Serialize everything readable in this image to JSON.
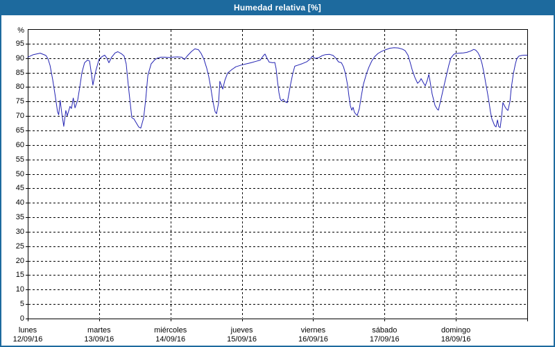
{
  "window": {
    "title": "Humedad relativa [%]"
  },
  "colors": {
    "titlebar_bg": "#1d6a9e",
    "frame_border": "#1d6a9e",
    "title_text": "#ffffff",
    "plot_border": "#000000",
    "grid": "#000000",
    "line": "#2222b2",
    "background": "#ffffff",
    "label_text": "#000000"
  },
  "chart_data": {
    "type": "line",
    "title": "Humedad relativa [%]",
    "ylabel": "%",
    "xlabel": "",
    "ylim": [
      0,
      100
    ],
    "xlim": [
      0,
      168
    ],
    "x_unit": "hours",
    "ytick_step": 5,
    "ytick_labels": [
      "0",
      "5",
      "10",
      "15",
      "20",
      "25",
      "30",
      "35",
      "40",
      "45",
      "50",
      "55",
      "60",
      "65",
      "70",
      "75",
      "80",
      "85",
      "90",
      "95"
    ],
    "y_axis_top_label": "%",
    "grid": "dashed",
    "legend": "none",
    "x_days": [
      {
        "name": "lunes",
        "date": "12/09/16"
      },
      {
        "name": "martes",
        "date": "13/09/16"
      },
      {
        "name": "miércoles",
        "date": "14/09/16"
      },
      {
        "name": "jueves",
        "date": "15/09/16"
      },
      {
        "name": "viernes",
        "date": "16/09/16"
      },
      {
        "name": "sábado",
        "date": "17/09/16"
      },
      {
        "name": "domingo",
        "date": "18/09/16"
      }
    ],
    "series": [
      {
        "name": "Humedad relativa",
        "color": "#2222b2",
        "points": [
          [
            0.0,
            90.3
          ],
          [
            1.9,
            91.2
          ],
          [
            4.2,
            91.7
          ],
          [
            6.1,
            90.9
          ],
          [
            6.8,
            89.8
          ],
          [
            7.5,
            87.5
          ],
          [
            8.4,
            82.5
          ],
          [
            9.3,
            76.5
          ],
          [
            10.0,
            71.5
          ],
          [
            10.4,
            70.4
          ],
          [
            10.9,
            75.4
          ],
          [
            11.4,
            71.2
          ],
          [
            12.1,
            66.4
          ],
          [
            12.8,
            71.9
          ],
          [
            13.3,
            70.1
          ],
          [
            14.2,
            73.3
          ],
          [
            14.7,
            72.6
          ],
          [
            15.3,
            76.2
          ],
          [
            15.9,
            72.8
          ],
          [
            16.8,
            75.5
          ],
          [
            17.5,
            80.0
          ],
          [
            18.2,
            84.9
          ],
          [
            19.1,
            88.4
          ],
          [
            20.1,
            89.3
          ],
          [
            20.8,
            89.0
          ],
          [
            21.5,
            84.0
          ],
          [
            21.9,
            80.7
          ],
          [
            22.9,
            85.6
          ],
          [
            24.0,
            89.7
          ],
          [
            25.0,
            90.5
          ],
          [
            25.9,
            91.0
          ],
          [
            26.6,
            90.0
          ],
          [
            27.3,
            88.4
          ],
          [
            28.2,
            90.3
          ],
          [
            29.4,
            91.8
          ],
          [
            30.3,
            92.2
          ],
          [
            31.5,
            91.5
          ],
          [
            32.4,
            90.7
          ],
          [
            33.1,
            88.0
          ],
          [
            33.8,
            80.7
          ],
          [
            34.3,
            76.0
          ],
          [
            35.0,
            69.4
          ],
          [
            35.7,
            69.0
          ],
          [
            36.6,
            67.4
          ],
          [
            37.3,
            66.2
          ],
          [
            38.0,
            65.8
          ],
          [
            39.0,
            69.4
          ],
          [
            39.7,
            75.9
          ],
          [
            40.4,
            84.0
          ],
          [
            41.5,
            88.0
          ],
          [
            42.7,
            89.4
          ],
          [
            43.6,
            90.0
          ],
          [
            44.8,
            90.3
          ],
          [
            46.2,
            90.3
          ],
          [
            47.4,
            90.2
          ],
          [
            48.5,
            90.3
          ],
          [
            50.4,
            90.4
          ],
          [
            51.8,
            90.3
          ],
          [
            52.7,
            89.5
          ],
          [
            53.7,
            90.8
          ],
          [
            55.1,
            92.3
          ],
          [
            56.2,
            93.2
          ],
          [
            57.4,
            92.9
          ],
          [
            58.3,
            91.6
          ],
          [
            59.3,
            89.5
          ],
          [
            60.2,
            86.5
          ],
          [
            60.9,
            83.5
          ],
          [
            61.6,
            79.5
          ],
          [
            62.3,
            74.9
          ],
          [
            63.0,
            71.5
          ],
          [
            63.5,
            70.8
          ],
          [
            64.2,
            74.5
          ],
          [
            64.6,
            82.0
          ],
          [
            65.6,
            79.3
          ],
          [
            66.3,
            82.3
          ],
          [
            67.2,
            84.8
          ],
          [
            68.6,
            86.0
          ],
          [
            70.0,
            87.0
          ],
          [
            71.9,
            87.6
          ],
          [
            73.5,
            88.0
          ],
          [
            75.1,
            88.4
          ],
          [
            76.8,
            88.9
          ],
          [
            78.2,
            89.3
          ],
          [
            79.3,
            90.9
          ],
          [
            79.8,
            91.4
          ],
          [
            80.5,
            89.9
          ],
          [
            81.2,
            88.6
          ],
          [
            82.4,
            88.4
          ],
          [
            83.1,
            88.5
          ],
          [
            83.5,
            86.5
          ],
          [
            84.0,
            82.0
          ],
          [
            84.5,
            78.0
          ],
          [
            84.9,
            75.9
          ],
          [
            85.4,
            75.2
          ],
          [
            85.9,
            75.8
          ],
          [
            86.6,
            74.9
          ],
          [
            87.3,
            74.6
          ],
          [
            87.7,
            77.0
          ],
          [
            88.4,
            81.0
          ],
          [
            89.1,
            84.5
          ],
          [
            89.8,
            87.2
          ],
          [
            91.0,
            87.6
          ],
          [
            92.4,
            88.1
          ],
          [
            93.8,
            88.7
          ],
          [
            95.0,
            89.7
          ],
          [
            95.7,
            90.6
          ],
          [
            96.6,
            89.9
          ],
          [
            97.8,
            90.1
          ],
          [
            98.9,
            90.8
          ],
          [
            100.1,
            91.2
          ],
          [
            101.5,
            91.3
          ],
          [
            102.7,
            90.9
          ],
          [
            103.6,
            90.0
          ],
          [
            104.5,
            88.7
          ],
          [
            105.5,
            88.4
          ],
          [
            106.2,
            87.0
          ],
          [
            106.9,
            84.5
          ],
          [
            107.6,
            80.5
          ],
          [
            108.0,
            77.0
          ],
          [
            108.5,
            73.5
          ],
          [
            109.0,
            72.0
          ],
          [
            109.4,
            73.0
          ],
          [
            109.9,
            71.2
          ],
          [
            110.4,
            70.6
          ],
          [
            110.8,
            70.2
          ],
          [
            111.5,
            72.5
          ],
          [
            112.2,
            77.0
          ],
          [
            112.9,
            81.0
          ],
          [
            113.9,
            84.5
          ],
          [
            114.8,
            87.0
          ],
          [
            115.7,
            89.0
          ],
          [
            116.7,
            90.5
          ],
          [
            117.8,
            91.6
          ],
          [
            119.0,
            92.3
          ],
          [
            120.4,
            92.9
          ],
          [
            121.8,
            93.4
          ],
          [
            123.2,
            93.6
          ],
          [
            124.6,
            93.5
          ],
          [
            126.0,
            93.1
          ],
          [
            126.9,
            92.6
          ],
          [
            127.9,
            91.0
          ],
          [
            128.6,
            88.6
          ],
          [
            129.3,
            86.0
          ],
          [
            130.2,
            83.3
          ],
          [
            131.1,
            81.3
          ],
          [
            131.8,
            82.0
          ],
          [
            132.3,
            82.9
          ],
          [
            133.0,
            81.6
          ],
          [
            133.7,
            80.4
          ],
          [
            134.4,
            82.4
          ],
          [
            134.9,
            84.4
          ],
          [
            135.3,
            82.0
          ],
          [
            136.0,
            77.6
          ],
          [
            137.0,
            73.6
          ],
          [
            137.7,
            72.4
          ],
          [
            138.1,
            72.0
          ],
          [
            138.8,
            75.0
          ],
          [
            139.8,
            79.5
          ],
          [
            140.7,
            83.5
          ],
          [
            141.6,
            87.5
          ],
          [
            142.3,
            90.0
          ],
          [
            143.3,
            91.3
          ],
          [
            144.0,
            91.6
          ],
          [
            145.1,
            91.7
          ],
          [
            146.5,
            91.8
          ],
          [
            147.7,
            92.0
          ],
          [
            148.9,
            92.4
          ],
          [
            150.0,
            93.0
          ],
          [
            150.7,
            92.7
          ],
          [
            151.4,
            91.9
          ],
          [
            152.1,
            90.5
          ],
          [
            152.8,
            88.0
          ],
          [
            153.5,
            84.5
          ],
          [
            154.0,
            81.5
          ],
          [
            154.7,
            77.5
          ],
          [
            155.2,
            74.5
          ],
          [
            155.6,
            71.5
          ],
          [
            156.1,
            69.0
          ],
          [
            156.6,
            67.8
          ],
          [
            157.0,
            66.7
          ],
          [
            157.5,
            66.2
          ],
          [
            158.0,
            68.6
          ],
          [
            158.4,
            66.3
          ],
          [
            158.9,
            66.0
          ],
          [
            159.4,
            70.0
          ],
          [
            159.8,
            74.6
          ],
          [
            160.5,
            73.2
          ],
          [
            161.0,
            72.4
          ],
          [
            161.5,
            71.9
          ],
          [
            162.2,
            75.0
          ],
          [
            162.6,
            79.5
          ],
          [
            163.3,
            84.5
          ],
          [
            164.0,
            88.0
          ],
          [
            164.5,
            89.8
          ],
          [
            165.2,
            90.7
          ],
          [
            166.1,
            90.9
          ],
          [
            167.1,
            91.0
          ],
          [
            168.0,
            91.0
          ]
        ]
      }
    ]
  }
}
